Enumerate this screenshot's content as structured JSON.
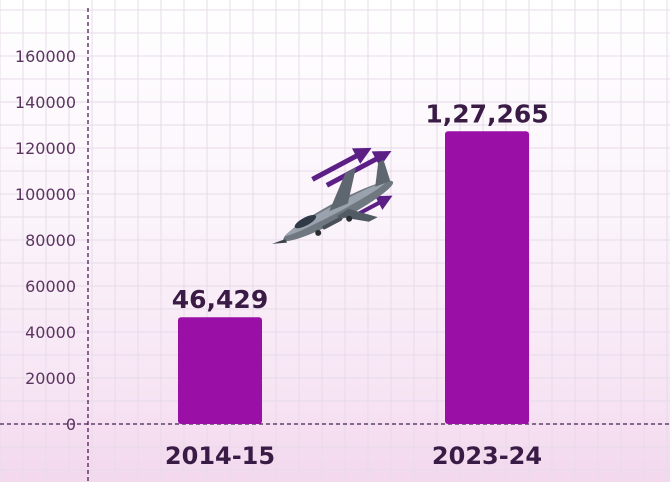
{
  "chart_data": {
    "type": "bar",
    "categories": [
      "2014-15",
      "2023-24"
    ],
    "values": [
      46429,
      127265
    ],
    "data_labels": [
      "46,429",
      "1,27,265"
    ],
    "y_ticks": [
      0,
      20000,
      40000,
      60000,
      80000,
      100000,
      120000,
      140000,
      160000
    ],
    "ylim": [
      0,
      170000
    ],
    "title": "",
    "xlabel": "",
    "ylabel": "",
    "grid": true,
    "legend": "none"
  },
  "colors": {
    "bar": "#9a0fa6",
    "grid": "#e7dbe9",
    "axis": "#4a1d55",
    "tick_text": "#5b3560",
    "label_text": "#3a1b45",
    "arrow": "#5c1f86"
  },
  "decoration": {
    "icon": "fighter-jet-icon"
  }
}
